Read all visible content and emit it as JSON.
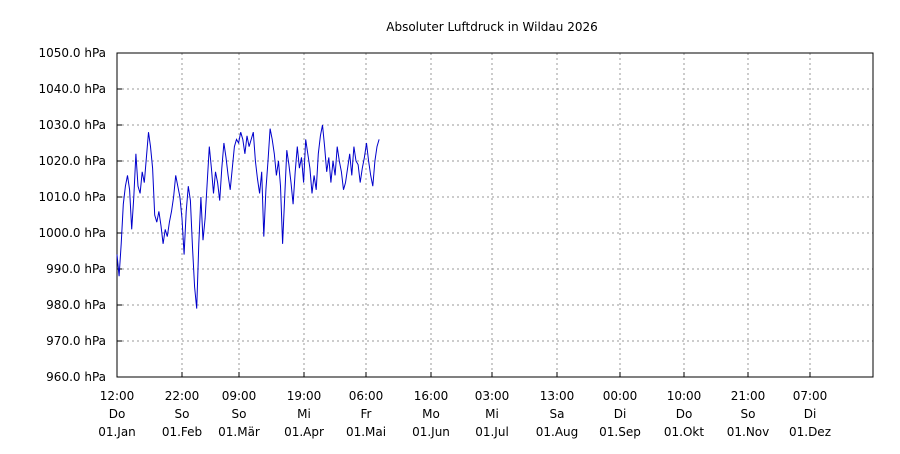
{
  "chart_data": {
    "type": "line",
    "title": "Absoluter Luftdruck in Wildau 2026",
    "xlabel": "",
    "ylabel": "",
    "ylim": [
      960,
      1050
    ],
    "y_ticks": [
      960,
      970,
      980,
      990,
      1000,
      1010,
      1020,
      1030,
      1040,
      1050
    ],
    "y_tick_labels": [
      "960.0 hPa",
      "970.0 hPa",
      "980.0 hPa",
      "990.0 hPa",
      "1000.0 hPa",
      "1010.0 hPa",
      "1020.0 hPa",
      "1030.0 hPa",
      "1040.0 hPa",
      "1050.0 hPa"
    ],
    "grid": true,
    "x_ticks": [
      {
        "time": "12:00",
        "weekday": "Do",
        "date": "01.Jan"
      },
      {
        "time": "22:00",
        "weekday": "So",
        "date": "01.Feb"
      },
      {
        "time": "09:00",
        "weekday": "So",
        "date": "01.Mär"
      },
      {
        "time": "19:00",
        "weekday": "Mi",
        "date": "01.Apr"
      },
      {
        "time": "06:00",
        "weekday": "Fr",
        "date": "01.Mai"
      },
      {
        "time": "16:00",
        "weekday": "Mo",
        "date": "01.Jun"
      },
      {
        "time": "03:00",
        "weekday": "Mi",
        "date": "01.Jul"
      },
      {
        "time": "13:00",
        "weekday": "Sa",
        "date": "01.Aug"
      },
      {
        "time": "00:00",
        "weekday": "Di",
        "date": "01.Sep"
      },
      {
        "time": "10:00",
        "weekday": "Do",
        "date": "01.Okt"
      },
      {
        "time": "21:00",
        "weekday": "So",
        "date": "01.Nov"
      },
      {
        "time": "07:00",
        "weekday": "Di",
        "date": "01.Dez"
      }
    ],
    "x_days": [
      0,
      1,
      2,
      3,
      4,
      5,
      6,
      7,
      8,
      9,
      10,
      11,
      12,
      13,
      14,
      15,
      16,
      17,
      18,
      19,
      20,
      21,
      22,
      23,
      24,
      25,
      26,
      27,
      28,
      29,
      30,
      31,
      32,
      33,
      34,
      35,
      36,
      37,
      38,
      39,
      40,
      41,
      42,
      43,
      44,
      45,
      46,
      47,
      48,
      49,
      50,
      51,
      52,
      53,
      54,
      55,
      56,
      57,
      58,
      59,
      60,
      61,
      62,
      63,
      64,
      65,
      66,
      67,
      68,
      69,
      70,
      71,
      72,
      73,
      74,
      75,
      76,
      77,
      78,
      79,
      80,
      81,
      82,
      83,
      84,
      85,
      86,
      87,
      88,
      89,
      90,
      91,
      92,
      93,
      94,
      95,
      96,
      97,
      98,
      99,
      100,
      101,
      102,
      103,
      104,
      105,
      106,
      107,
      108,
      109,
      110,
      111,
      112,
      113,
      114,
      115,
      116,
      117,
      118,
      119,
      120,
      121,
      122,
      123,
      124,
      125
    ],
    "series": [
      {
        "values": [
          994,
          988,
          997,
          1008,
          1013,
          1016,
          1012,
          1001,
          1010,
          1022,
          1013,
          1011,
          1017,
          1014,
          1021,
          1028,
          1024,
          1018,
          1005,
          1003,
          1006,
          1002,
          997,
          1001,
          999,
          1003,
          1006,
          1010,
          1016,
          1013,
          1010,
          1004,
          994,
          1006,
          1013,
          1009,
          996,
          985,
          979,
          997,
          1010,
          998,
          1004,
          1014,
          1024,
          1018,
          1011,
          1017,
          1014,
          1009,
          1018,
          1025,
          1021,
          1016,
          1012,
          1018,
          1024,
          1026,
          1025,
          1028,
          1026,
          1022,
          1027,
          1024,
          1026,
          1028,
          1020,
          1015,
          1011,
          1017,
          999,
          1012,
          1020,
          1029,
          1026,
          1022,
          1016,
          1020,
          1013,
          997,
          1010,
          1023,
          1019,
          1014,
          1008,
          1017,
          1024,
          1018,
          1021,
          1014,
          1026,
          1022,
          1018,
          1011,
          1016,
          1012,
          1022,
          1027,
          1030,
          1024,
          1017,
          1021,
          1014,
          1020,
          1016,
          1024,
          1020,
          1017,
          1012,
          1014,
          1018,
          1022,
          1016,
          1024,
          1020,
          1019,
          1014,
          1018,
          1021,
          1025,
          1020,
          1016,
          1013,
          1020,
          1024,
          1026
        ]
      }
    ]
  }
}
